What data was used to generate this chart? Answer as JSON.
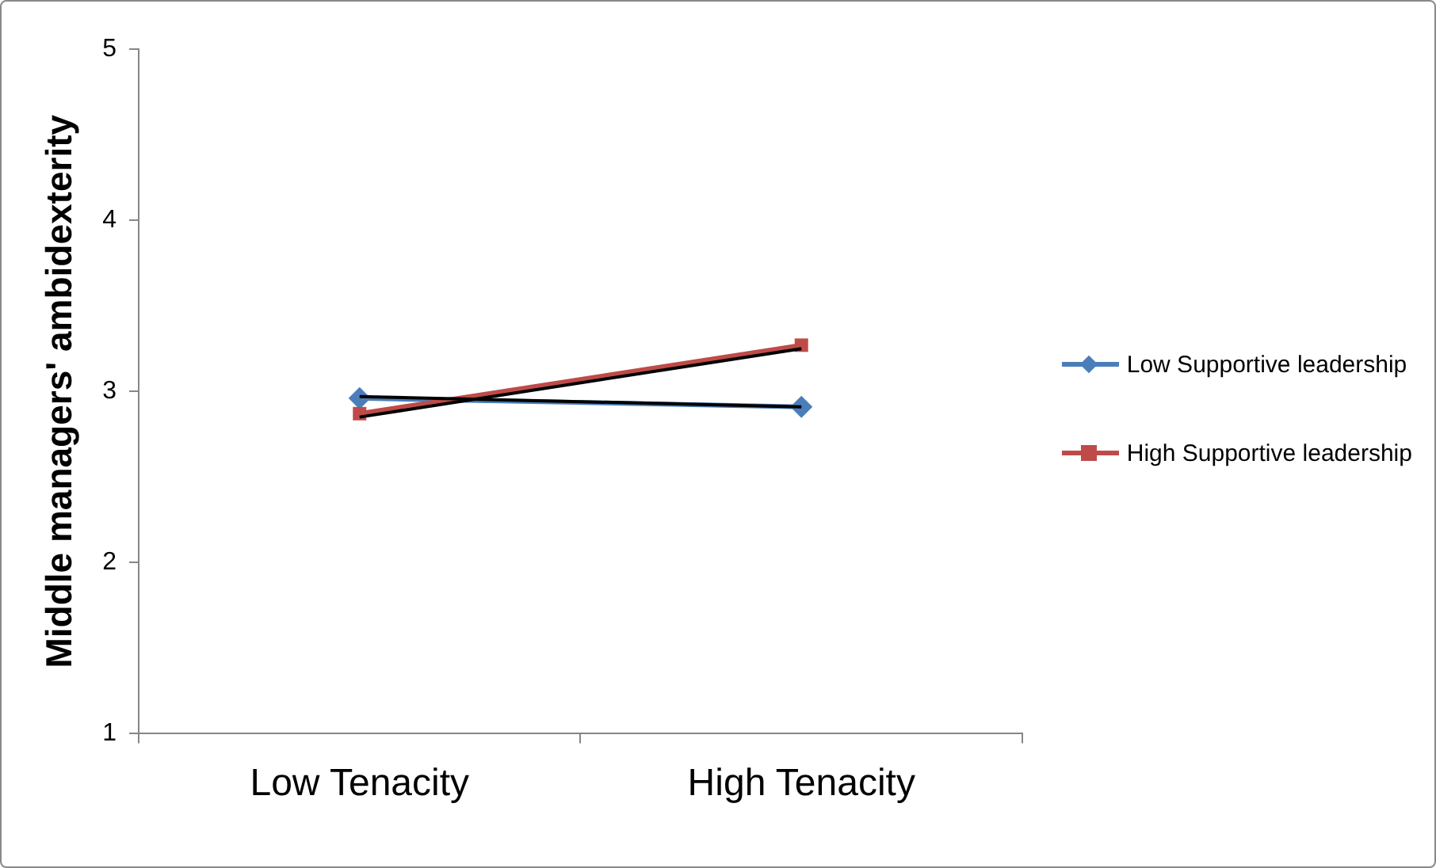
{
  "chart_data": {
    "type": "line",
    "ylabel": "Middle managers' ambidexterity",
    "categories": [
      "Low Tenacity",
      "High Tenacity"
    ],
    "series": [
      {
        "name": "Low Supportive leadership",
        "color": "#4a7ebb",
        "marker": "diamond",
        "values": [
          2.96,
          2.91
        ]
      },
      {
        "name": "High Supportive leadership",
        "color": "#be4b48",
        "marker": "square",
        "values": [
          2.87,
          3.27
        ]
      },
      {
        "color": "#000000",
        "marker": "none",
        "values": [
          2.97,
          2.91
        ]
      },
      {
        "color": "#000000",
        "marker": "none",
        "values": [
          2.85,
          3.25
        ]
      }
    ],
    "ylim": [
      1,
      5
    ],
    "yticks": [
      1,
      2,
      3,
      4,
      5
    ],
    "grid": false,
    "legend": "right"
  }
}
